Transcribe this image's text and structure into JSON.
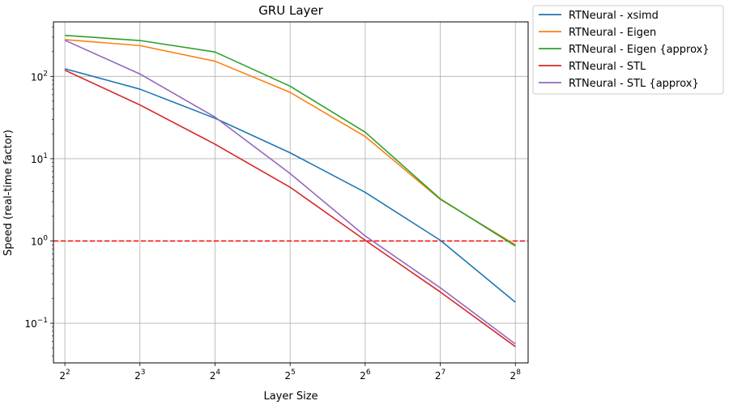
{
  "chart_data": {
    "type": "line",
    "title": "GRU Layer",
    "xlabel": "Layer Size",
    "ylabel": "Speed (real-time factor)",
    "x_scale": "log2",
    "y_scale": "log10",
    "x": [
      4,
      8,
      16,
      32,
      64,
      128,
      256
    ],
    "x_tick_labels": [
      {
        "base": "2",
        "exp": "2"
      },
      {
        "base": "2",
        "exp": "3"
      },
      {
        "base": "2",
        "exp": "4"
      },
      {
        "base": "2",
        "exp": "5"
      },
      {
        "base": "2",
        "exp": "6"
      },
      {
        "base": "2",
        "exp": "7"
      },
      {
        "base": "2",
        "exp": "8"
      }
    ],
    "y_tick_labels": [
      {
        "value": 0.1,
        "base": "10",
        "exp": "−1"
      },
      {
        "value": 1,
        "base": "10",
        "exp": "0"
      },
      {
        "value": 10,
        "base": "10",
        "exp": "1"
      },
      {
        "value": 100,
        "base": "10",
        "exp": "2"
      }
    ],
    "xlim": [
      3.6,
      288
    ],
    "ylim": [
      0.033,
      460
    ],
    "grid": true,
    "legend_placement": "outside-top-right",
    "reference_line": {
      "y": 1,
      "color": "#ff0000",
      "style": "dashed"
    },
    "series": [
      {
        "name": "RTNeural - xsimd",
        "color": "#1f77b4",
        "values": [
          124,
          70,
          31,
          11.8,
          3.9,
          1.02,
          0.18
        ]
      },
      {
        "name": "RTNeural - Eigen",
        "color": "#ff7f0e",
        "values": [
          280,
          237,
          153,
          64,
          18.6,
          3.2,
          0.9
        ]
      },
      {
        "name": "RTNeural - Eigen {approx}",
        "color": "#2ca02c",
        "values": [
          315,
          273,
          198,
          76,
          21,
          3.25,
          0.87
        ]
      },
      {
        "name": "RTNeural - STL",
        "color": "#d62728",
        "values": [
          119,
          45,
          15,
          4.5,
          1.02,
          0.24,
          0.052
        ]
      },
      {
        "name": "RTNeural - STL {approx}",
        "color": "#9467bd",
        "values": [
          275,
          107,
          32,
          6.6,
          1.15,
          0.27,
          0.056
        ]
      }
    ]
  }
}
